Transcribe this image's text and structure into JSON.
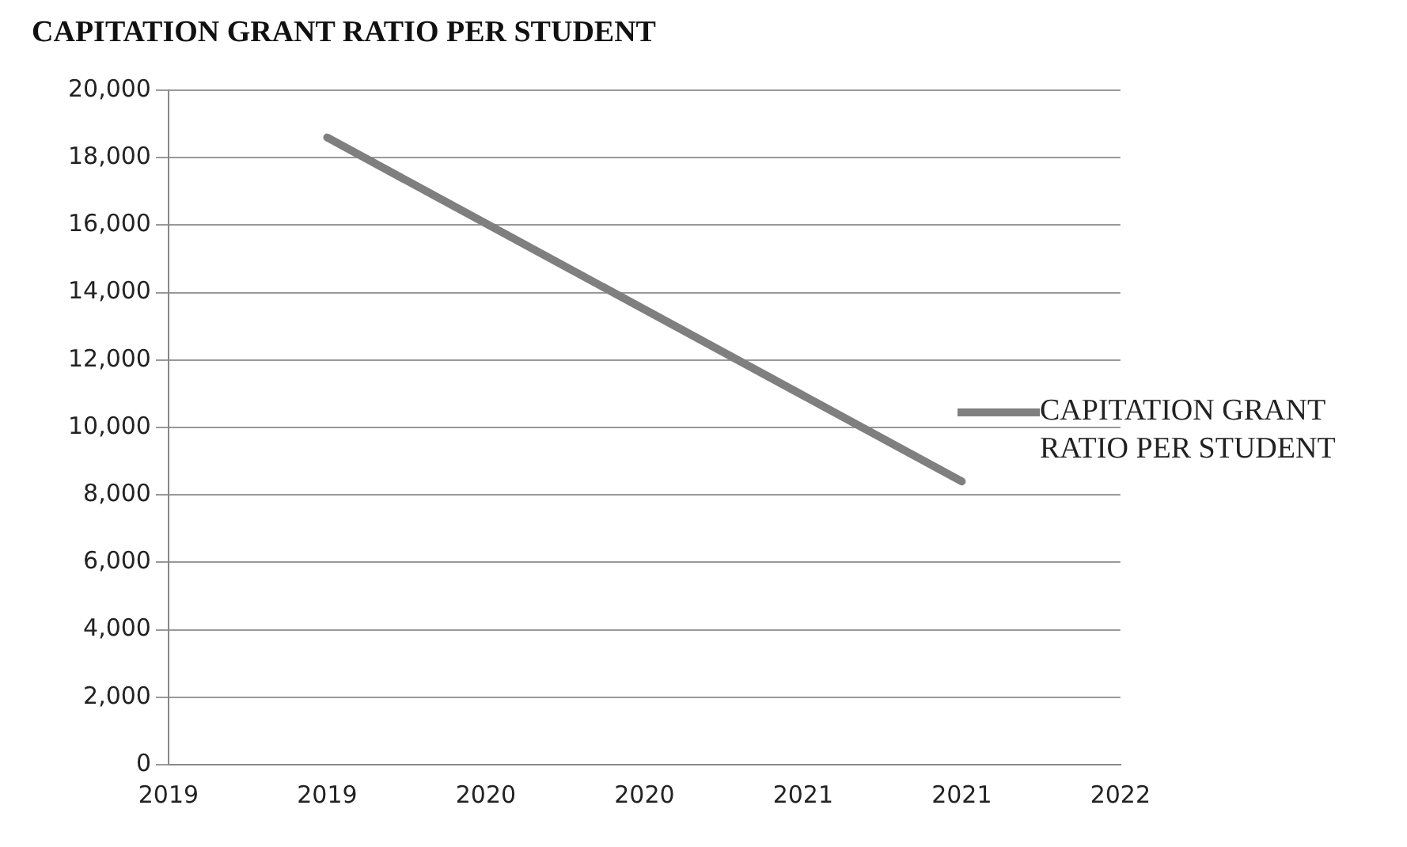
{
  "chart_data": {
    "type": "line",
    "title": "CAPITATION GRANT RATIO PER STUDENT",
    "series": [
      {
        "name": "CAPITATION GRANT RATIO PER STUDENT",
        "color": "#7f7f7f",
        "x": [
          2019.25,
          2021.25
        ],
        "values": [
          18600,
          8400
        ]
      }
    ],
    "xlim": [
      2018.75,
      2021.75
    ],
    "xticks": [
      {
        "value": 2018.75,
        "label": "2019"
      },
      {
        "value": 2019.25,
        "label": "2019"
      },
      {
        "value": 2019.75,
        "label": "2020"
      },
      {
        "value": 2020.25,
        "label": "2020"
      },
      {
        "value": 2020.75,
        "label": "2021"
      },
      {
        "value": 2021.25,
        "label": "2021"
      },
      {
        "value": 2021.75,
        "label": "2022"
      }
    ],
    "ylim": [
      0,
      20000
    ],
    "yticks": [
      0,
      {
        "value": 2000,
        "label": "2,000"
      },
      {
        "value": 4000,
        "label": "4,000"
      },
      {
        "value": 6000,
        "label": "6,000"
      },
      {
        "value": 8000,
        "label": "8,000"
      },
      {
        "value": 10000,
        "label": "10,000"
      },
      {
        "value": 12000,
        "label": "12,000"
      },
      {
        "value": 14000,
        "label": "14,000"
      },
      {
        "value": 16000,
        "label": "16,000"
      },
      {
        "value": 18000,
        "label": "18,000"
      },
      {
        "value": 20000,
        "label": "20,000"
      }
    ],
    "grid": "y",
    "legend": "right",
    "marker": "none",
    "line_style": "solid"
  }
}
